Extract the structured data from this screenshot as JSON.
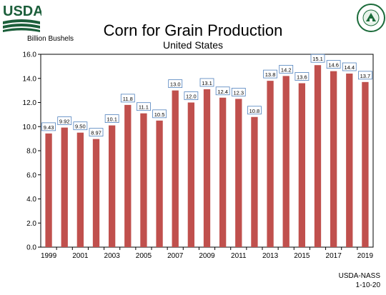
{
  "header": {
    "logo_text": "USDA",
    "title": "Corn for Grain Production",
    "subtitle": "United States",
    "seal_text": "AGRICULTURE · COUNTS"
  },
  "footer": {
    "source": "USDA-NASS",
    "date": "1-10-20"
  },
  "chart_data": {
    "type": "bar",
    "title": "Corn for Grain Production",
    "subtitle": "United States",
    "ylabel": "Billion Bushels",
    "xlabel": "",
    "ylim": [
      0,
      16
    ],
    "yticks": [
      "0.0",
      "2.0",
      "4.0",
      "6.0",
      "8.0",
      "10.0",
      "12.0",
      "14.0",
      "16.0"
    ],
    "categories": [
      "1999",
      "2000",
      "2001",
      "2002",
      "2003",
      "2004",
      "2005",
      "2006",
      "2007",
      "2008",
      "2009",
      "2010",
      "2011",
      "2012",
      "2013",
      "2014",
      "2015",
      "2016",
      "2017",
      "2018",
      "2019"
    ],
    "values": [
      9.43,
      9.92,
      9.5,
      8.97,
      10.1,
      11.8,
      11.1,
      10.5,
      13.0,
      12.0,
      13.1,
      12.4,
      12.3,
      10.8,
      13.8,
      14.2,
      13.6,
      15.1,
      14.6,
      14.4,
      13.7
    ],
    "data_labels": [
      "9.43",
      "9.92",
      "9.50",
      "8.97",
      "10.1",
      "11.8",
      "11.1",
      "10.5",
      "13.0",
      "12.0",
      "13.1",
      "12.4",
      "12.3",
      "10.8",
      "13.8",
      "14.2",
      "13.6",
      "15.1",
      "14.6",
      "14.4",
      "13.7"
    ],
    "xtick_labels": [
      "1999",
      "",
      "2001",
      "",
      "2003",
      "",
      "2005",
      "",
      "2007",
      "",
      "2009",
      "",
      "2011",
      "",
      "2013",
      "",
      "2015",
      "",
      "2017",
      "",
      "2019"
    ],
    "bar_color": "#c0504d",
    "grid": false
  }
}
